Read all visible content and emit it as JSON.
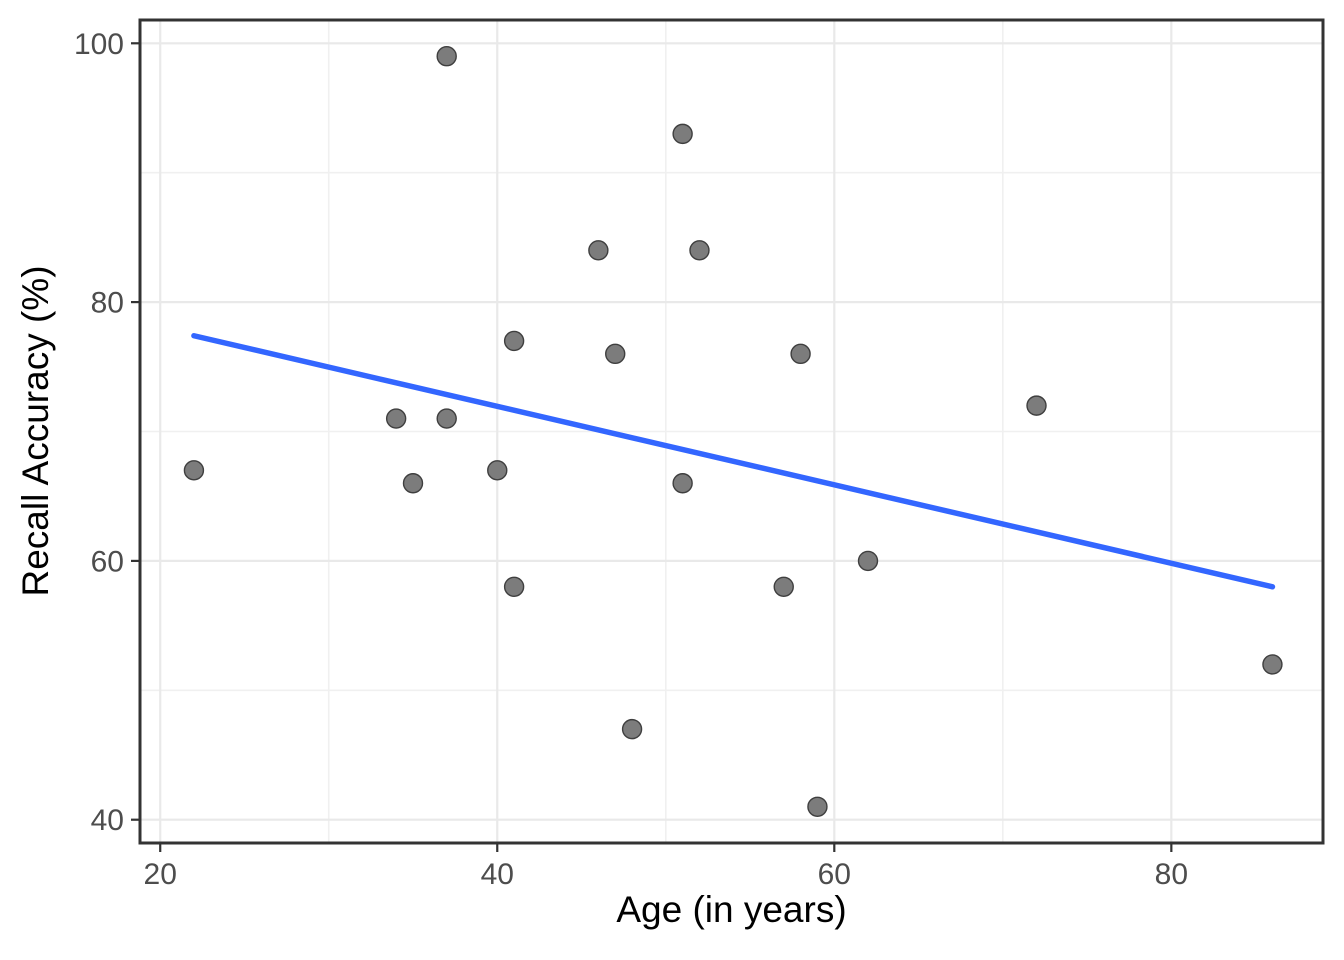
{
  "chart_data": {
    "type": "scatter",
    "title": "",
    "xlabel": "Age (in years)",
    "ylabel": "Recall Accuracy (%)",
    "xlim": [
      18.8,
      89.0
    ],
    "ylim": [
      38.2,
      101.8
    ],
    "x_ticks": [
      20,
      40,
      60,
      80
    ],
    "x_minor_ticks": [
      30,
      50,
      70
    ],
    "y_ticks": [
      40,
      60,
      80,
      100
    ],
    "y_minor_ticks": [
      50,
      70,
      90
    ],
    "grid": true,
    "legend": false,
    "points": [
      {
        "x": 22,
        "y": 67
      },
      {
        "x": 34,
        "y": 71
      },
      {
        "x": 35,
        "y": 66
      },
      {
        "x": 37,
        "y": 99
      },
      {
        "x": 37,
        "y": 71
      },
      {
        "x": 40,
        "y": 67
      },
      {
        "x": 41,
        "y": 77
      },
      {
        "x": 41,
        "y": 58
      },
      {
        "x": 46,
        "y": 84
      },
      {
        "x": 47,
        "y": 76
      },
      {
        "x": 48,
        "y": 47
      },
      {
        "x": 51,
        "y": 93
      },
      {
        "x": 51,
        "y": 66
      },
      {
        "x": 52,
        "y": 84
      },
      {
        "x": 57,
        "y": 58
      },
      {
        "x": 58,
        "y": 76
      },
      {
        "x": 59,
        "y": 41
      },
      {
        "x": 62,
        "y": 60
      },
      {
        "x": 72,
        "y": 72
      },
      {
        "x": 86,
        "y": 52
      }
    ],
    "trend_line": {
      "type": "linear",
      "x_start": 22,
      "y_start": 77.4,
      "x_end": 86,
      "y_end": 58.0,
      "slope": -0.303,
      "intercept": 84.1
    },
    "colors": {
      "background": "#FFFFFF",
      "panel_border": "#333333",
      "grid_major": "#E9E9E9",
      "grid_minor": "#F0F0F0",
      "tick_mark": "#333333",
      "tick_label": "#4D4D4D",
      "axis_title": "#000000",
      "point_fill": "#7C7C7C",
      "point_stroke": "#3F3F3F",
      "trend": "#3366FF"
    }
  }
}
